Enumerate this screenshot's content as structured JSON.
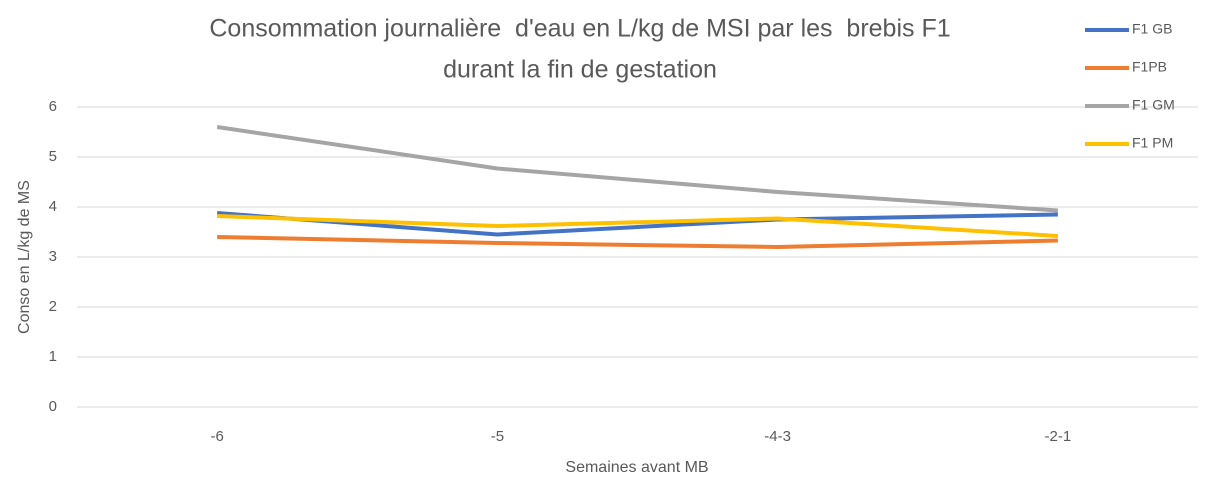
{
  "chart_data": {
    "type": "line",
    "title": [
      "Consommation journalière  d'eau en L/kg de MSI par les  brebis F1",
      "durant la fin de gestation"
    ],
    "xlabel": "Semaines avant MB",
    "ylabel": "Conso en L/kg de MS",
    "categories": [
      "-6",
      "-5",
      "-4-3",
      "-2-1"
    ],
    "series": [
      {
        "name": "F1 GB",
        "color": "#4472c4",
        "values": [
          3.88,
          3.45,
          3.75,
          3.85
        ]
      },
      {
        "name": "F1PB",
        "color": "#ed7d31",
        "values": [
          3.4,
          3.28,
          3.2,
          3.33
        ]
      },
      {
        "name": "F1 GM",
        "color": "#a5a5a5",
        "values": [
          5.6,
          4.77,
          4.3,
          3.93
        ]
      },
      {
        "name": "F1 PM",
        "color": "#ffc000",
        "values": [
          3.82,
          3.62,
          3.77,
          3.42
        ]
      }
    ],
    "ylim": [
      0,
      6
    ],
    "yticks": [
      0,
      1,
      2,
      3,
      4,
      5,
      6
    ],
    "grid": true,
    "legend": "top-right"
  }
}
